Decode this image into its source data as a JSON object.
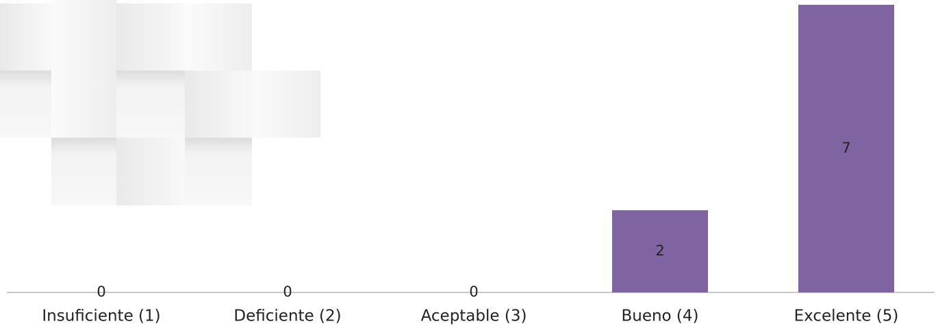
{
  "chart_data": {
    "type": "bar",
    "categories": [
      "Insuficiente (1)",
      "Deficiente (2)",
      "Aceptable (3)",
      "Bueno (4)",
      "Excelente (5)"
    ],
    "values": [
      0,
      0,
      0,
      2,
      7
    ],
    "color": "#8064a2",
    "ylim": [
      0,
      7
    ]
  }
}
